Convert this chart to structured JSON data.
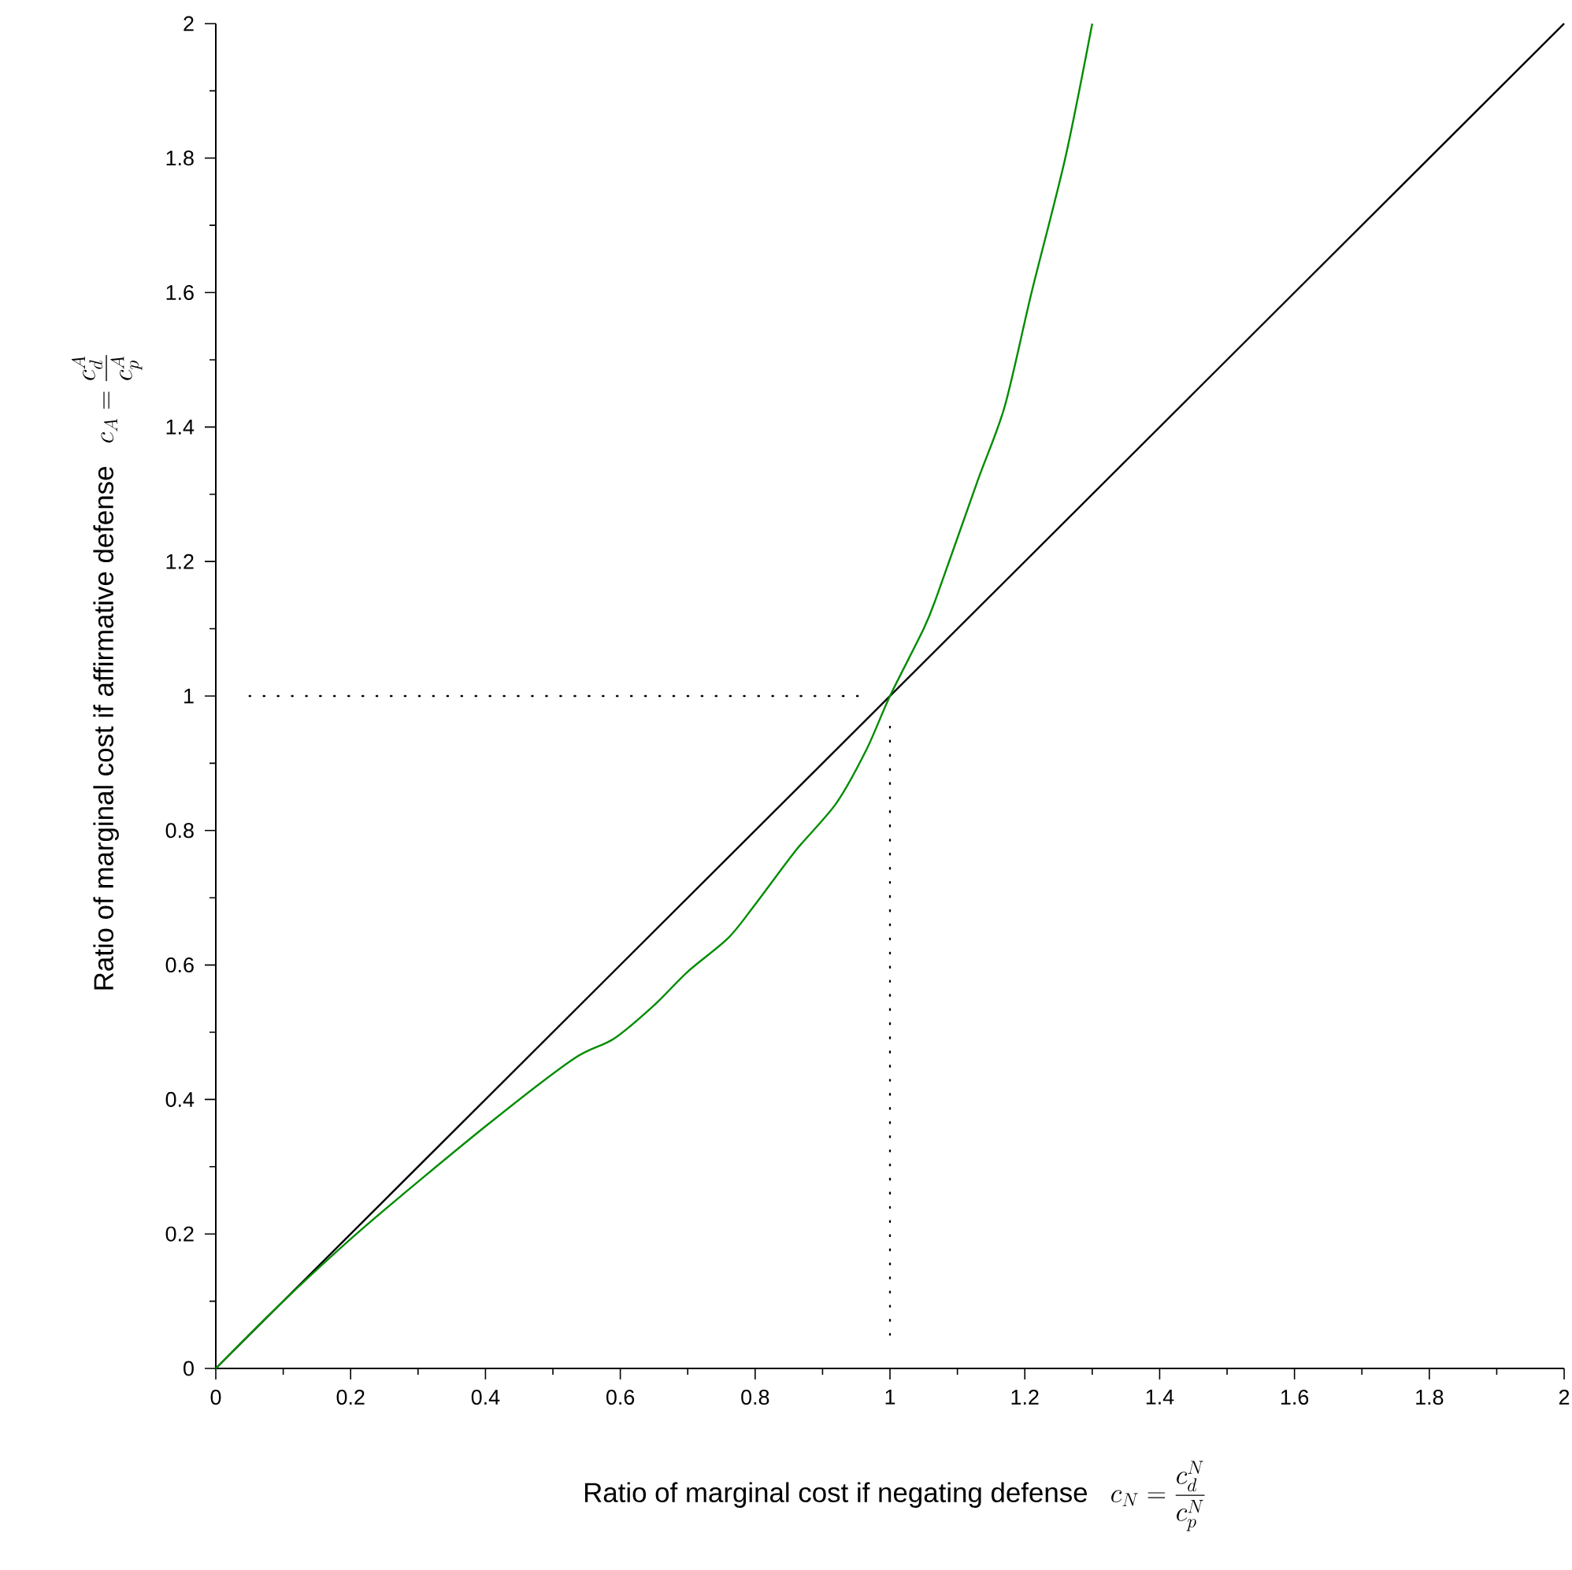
{
  "chart_data": {
    "type": "line",
    "xlabel": "Ratio of marginal cost if negating defense",
    "ylabel": "Ratio of marginal cost if affirmative defense",
    "annotations": [
      "c_N = \\frac{c_d^N}{c_p^N}",
      "c_A = \\frac{c_d^A}{c_p^A}"
    ],
    "xlim": [
      0,
      2
    ],
    "ylim": [
      0,
      2
    ],
    "xticks": [
      0,
      0.2,
      0.4,
      0.6,
      0.8,
      1,
      1.2,
      1.4,
      1.6,
      1.8,
      2
    ],
    "yticks": [
      0,
      0.2,
      0.4,
      0.6,
      0.8,
      1,
      1.2,
      1.4,
      1.6,
      1.8,
      2
    ],
    "series": [
      {
        "color": "#000000",
        "x": [
          0,
          2
        ],
        "values": [
          0,
          2
        ]
      },
      {
        "color": "#008c00",
        "x": [
          0,
          0.1,
          0.22,
          0.4,
          0.53,
          0.59,
          0.65,
          0.7,
          0.76,
          0.8,
          0.86,
          0.92,
          0.965,
          1.0,
          1.05,
          1.07,
          1.13,
          1.17,
          1.21,
          1.26,
          1.3
        ],
        "values": [
          0,
          0.1,
          0.21,
          0.36,
          0.46,
          0.49,
          0.54,
          0.59,
          0.64,
          0.69,
          0.77,
          0.84,
          0.92,
          1.0,
          1.1,
          1.15,
          1.32,
          1.43,
          1.6,
          1.8,
          2.0
        ]
      },
      {
        "color": "#000000",
        "line_style": "dotted",
        "x": [
          0.05,
          0.96
        ],
        "values": [
          1,
          1
        ]
      },
      {
        "color": "#000000",
        "line_style": "dotted",
        "x": [
          1,
          1
        ],
        "values": [
          0.05,
          0.96
        ]
      }
    ]
  }
}
